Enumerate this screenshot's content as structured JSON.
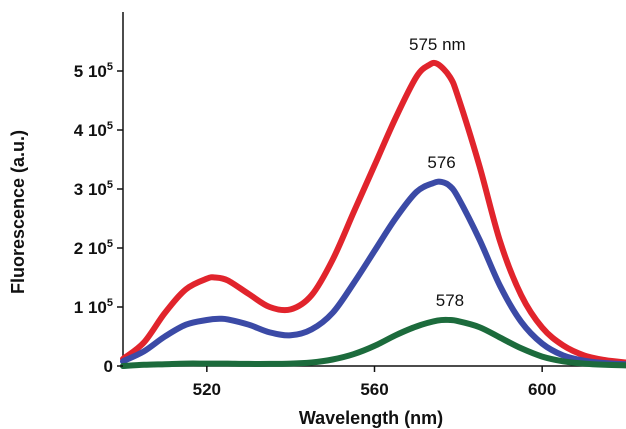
{
  "chart_data": {
    "type": "line",
    "title": "",
    "xlabel": "Wavelength (nm)",
    "ylabel": "Fluorescence (a.u.)",
    "xlim": [
      500,
      620
    ],
    "ylim": [
      0,
      600000
    ],
    "x_ticks": [
      520,
      560,
      600
    ],
    "y_ticks": [
      {
        "value": 0,
        "label": "0"
      },
      {
        "value": 100000,
        "label": "1 10",
        "exp": "5"
      },
      {
        "value": 200000,
        "label": "2 10",
        "exp": "5"
      },
      {
        "value": 300000,
        "label": "3 10",
        "exp": "5"
      },
      {
        "value": 400000,
        "label": "4 10",
        "exp": "5"
      },
      {
        "value": 500000,
        "label": "5 10",
        "exp": "5"
      }
    ],
    "grid": false,
    "legend": "none",
    "series": [
      {
        "name": "",
        "color": "#e1242c",
        "annotation": "575 nm",
        "x": [
          500,
          505,
          510,
          515,
          520,
          522,
          525,
          530,
          535,
          540,
          545,
          550,
          555,
          560,
          565,
          570,
          573,
          575,
          578,
          580,
          585,
          590,
          595,
          600,
          605,
          610,
          615,
          620
        ],
        "y": [
          12000,
          40000,
          90000,
          130000,
          148000,
          150000,
          145000,
          122000,
          100000,
          96000,
          120000,
          180000,
          260000,
          340000,
          420000,
          490000,
          510000,
          512000,
          490000,
          455000,
          340000,
          210000,
          120000,
          65000,
          35000,
          18000,
          10000,
          6000
        ]
      },
      {
        "name": "",
        "color": "#3b4aa6",
        "annotation": "576",
        "x": [
          500,
          505,
          510,
          515,
          520,
          523,
          525,
          530,
          535,
          540,
          545,
          550,
          555,
          560,
          565,
          570,
          574,
          576,
          578,
          580,
          585,
          590,
          595,
          600,
          605,
          610,
          615,
          620
        ],
        "y": [
          8000,
          25000,
          50000,
          70000,
          78000,
          80000,
          79000,
          70000,
          57000,
          52000,
          62000,
          90000,
          140000,
          195000,
          250000,
          295000,
          310000,
          312000,
          305000,
          285000,
          215000,
          135000,
          75000,
          38000,
          18000,
          9000,
          5000,
          3000
        ]
      },
      {
        "name": "",
        "color": "#1c6b3c",
        "annotation": "578",
        "x": [
          500,
          505,
          510,
          515,
          520,
          525,
          530,
          535,
          540,
          545,
          550,
          555,
          560,
          565,
          570,
          575,
          578,
          580,
          585,
          590,
          595,
          600,
          605,
          610,
          615,
          620
        ],
        "y": [
          0,
          2000,
          3000,
          4000,
          4000,
          4000,
          3500,
          3500,
          4000,
          6000,
          11000,
          20000,
          34000,
          52000,
          67000,
          77000,
          78000,
          76000,
          66000,
          48000,
          30000,
          16000,
          8000,
          4000,
          2000,
          1000
        ]
      }
    ]
  }
}
